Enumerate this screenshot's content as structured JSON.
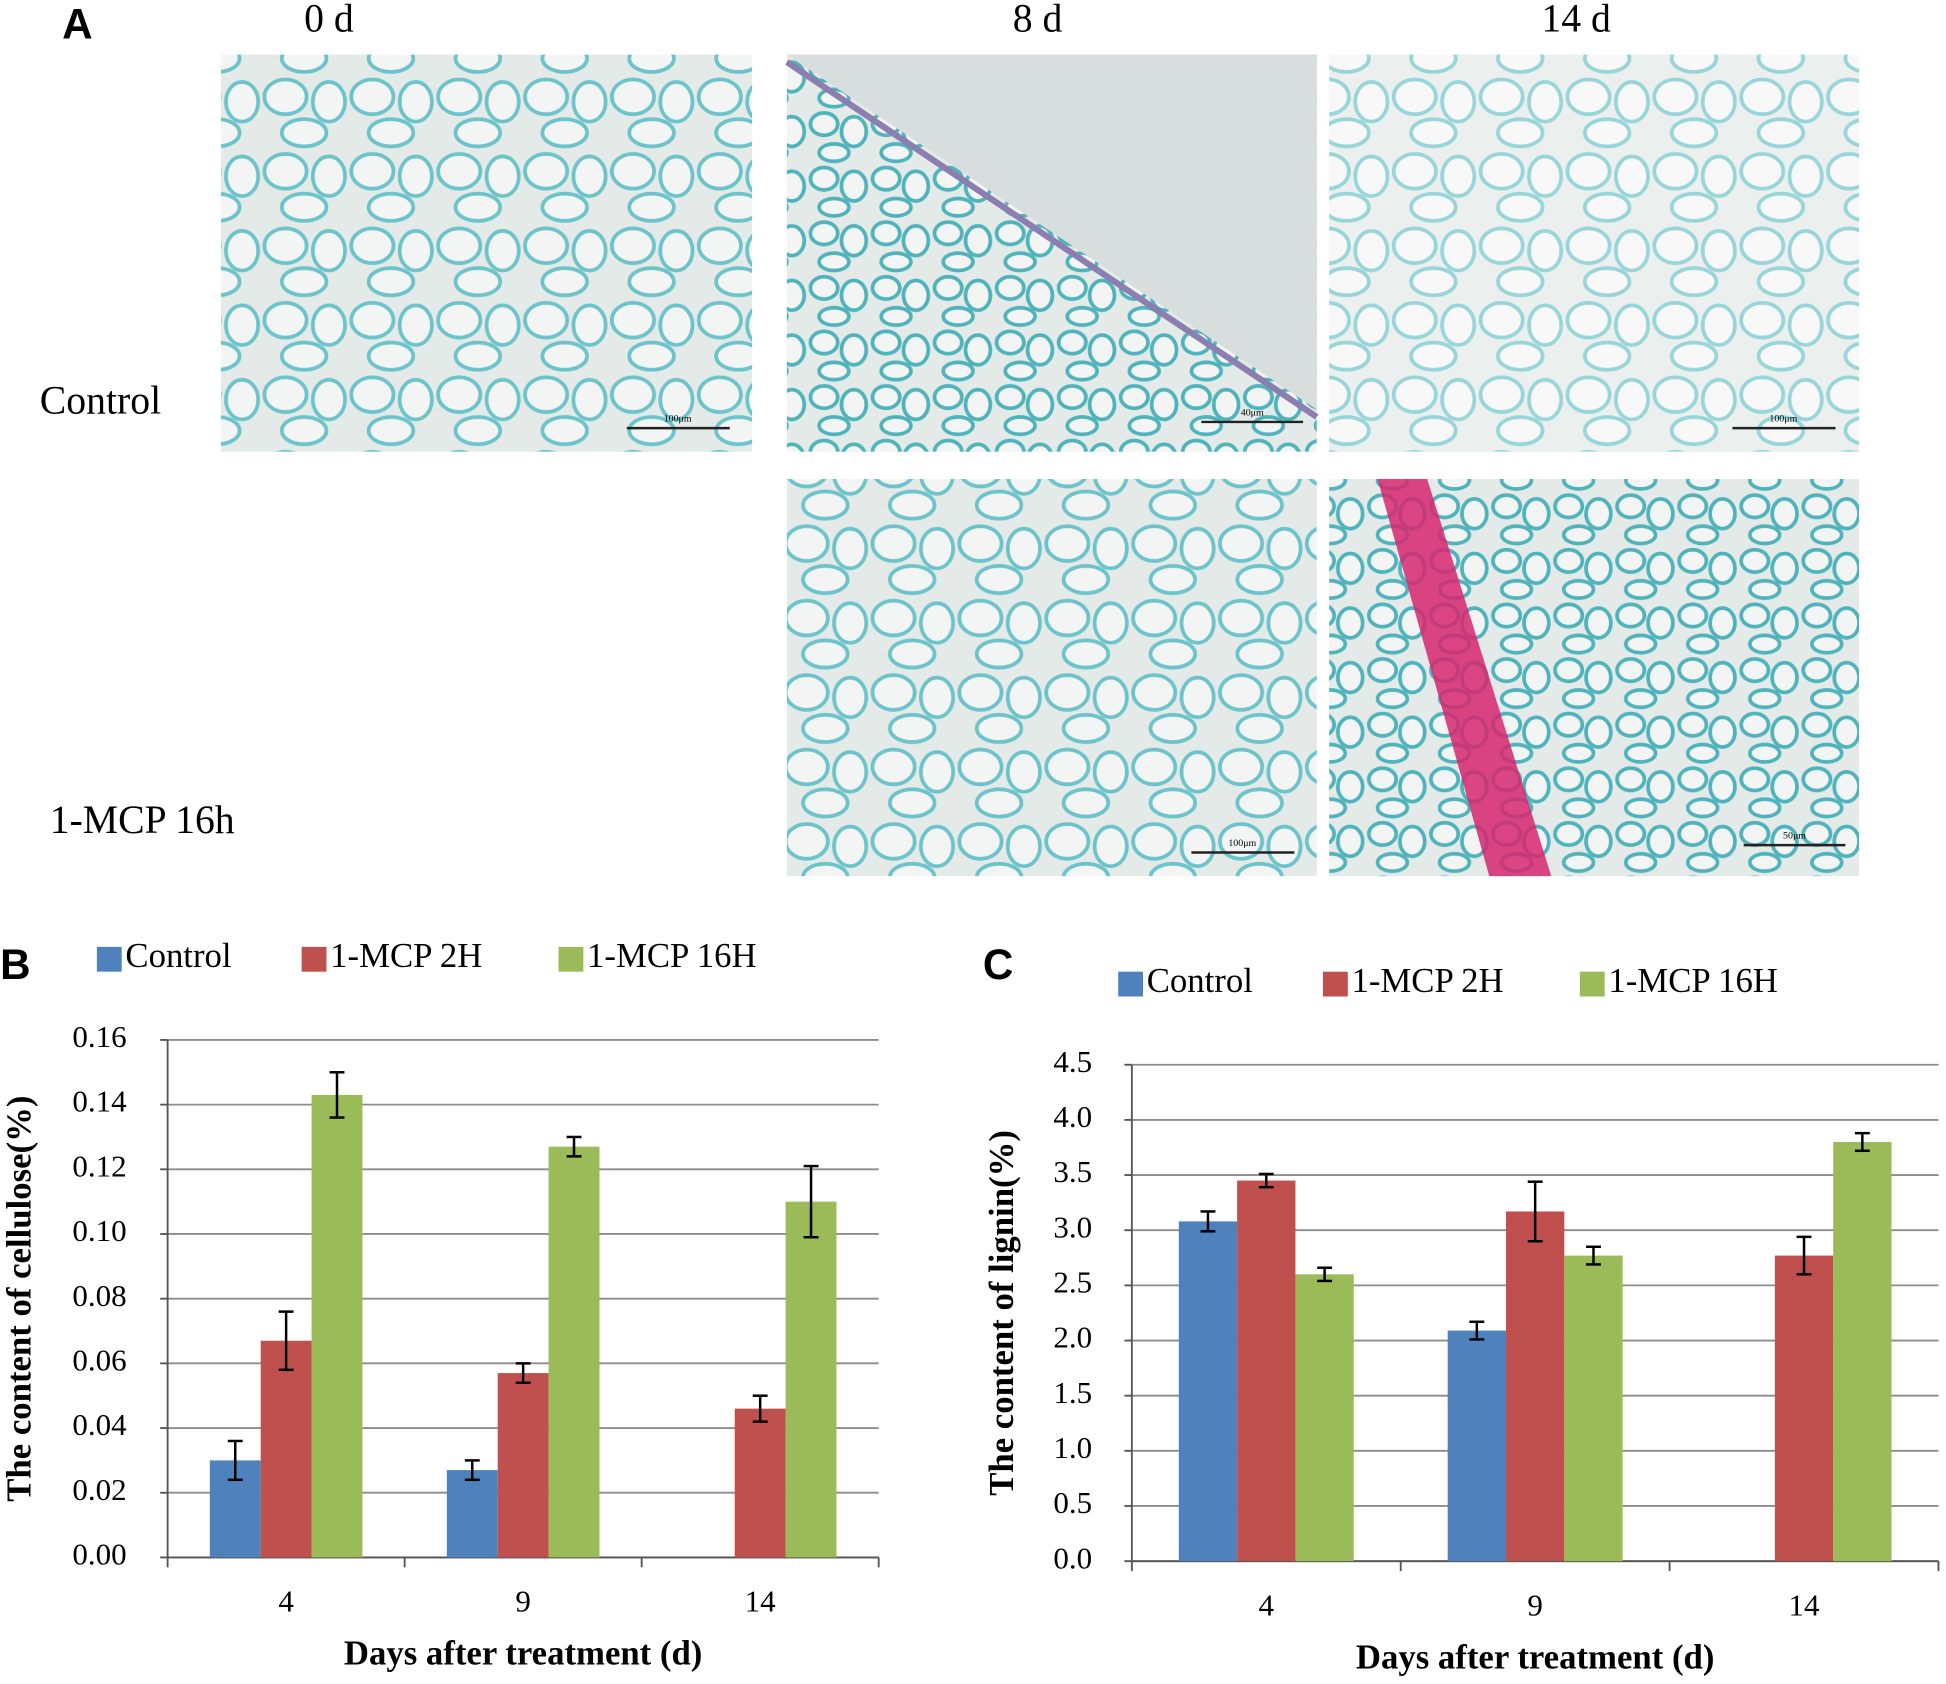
{
  "panel_a": {
    "label": "A",
    "columns": [
      "0 d",
      "8 d",
      "14 d"
    ],
    "rows": [
      "Control",
      "1-MCP 16h"
    ],
    "scale_bars": [
      "100μm",
      "40μm",
      "100μm",
      "100μm",
      "50μm"
    ]
  },
  "chart_data": [
    {
      "type": "bar",
      "label": "B",
      "x_label": "Days after  treatment  (d)",
      "y_label": "The content  of cellulose(%)",
      "categories": [
        "4",
        "9",
        "14"
      ],
      "series": [
        {
          "name": "Control",
          "color": "#4f81bd",
          "values": [
            0.03,
            0.027,
            null
          ],
          "errors": [
            0.006,
            0.003,
            null
          ]
        },
        {
          "name": "1-MCP  2H",
          "color": "#c0504d",
          "values": [
            0.067,
            0.057,
            0.046
          ],
          "errors": [
            0.009,
            0.003,
            0.004
          ]
        },
        {
          "name": "1-MCP  16H",
          "color": "#9bbb59",
          "values": [
            0.143,
            0.127,
            0.11
          ],
          "errors": [
            0.007,
            0.003,
            0.011
          ]
        }
      ],
      "ylim": [
        0,
        0.16
      ],
      "yticks": [
        {
          "value": 0,
          "label": "0.00"
        },
        {
          "value": 0.02,
          "label": "0.02"
        },
        {
          "value": 0.04,
          "label": "0.04"
        },
        {
          "value": 0.06,
          "label": "0.06"
        },
        {
          "value": 0.08,
          "label": "0.08"
        },
        {
          "value": 0.1,
          "label": "0.10"
        },
        {
          "value": 0.12,
          "label": "0.12"
        },
        {
          "value": 0.14,
          "label": "0.14"
        },
        {
          "value": 0.16,
          "label": "0.16"
        }
      ],
      "grid": true,
      "legend": "top"
    },
    {
      "type": "bar",
      "label": "C",
      "x_label": "Days after  treatment  (d)",
      "y_label": "The content  of lignin(%)",
      "categories": [
        "4",
        "9",
        "14"
      ],
      "series": [
        {
          "name": "Control",
          "color": "#4f81bd",
          "values": [
            3.08,
            2.09,
            null
          ],
          "errors": [
            0.09,
            0.08,
            null
          ]
        },
        {
          "name": "1-MCP  2H",
          "color": "#c0504d",
          "values": [
            3.45,
            3.17,
            2.77
          ],
          "errors": [
            0.06,
            0.27,
            0.17
          ]
        },
        {
          "name": "1-MCP  16H",
          "color": "#9bbb59",
          "values": [
            2.6,
            2.77,
            3.8
          ],
          "errors": [
            0.06,
            0.08,
            0.08
          ]
        }
      ],
      "ylim": [
        0,
        4.5
      ],
      "yticks": [
        {
          "value": 0,
          "label": "0.0"
        },
        0.5,
        {
          "value": 1,
          "label": "1.0"
        },
        1.5,
        {
          "value": 2,
          "label": "2.0"
        },
        2.5,
        {
          "value": 3,
          "label": "3.0"
        },
        3.5,
        {
          "value": 4,
          "label": "4.0"
        },
        4.5
      ],
      "grid": true,
      "legend": "top"
    }
  ]
}
